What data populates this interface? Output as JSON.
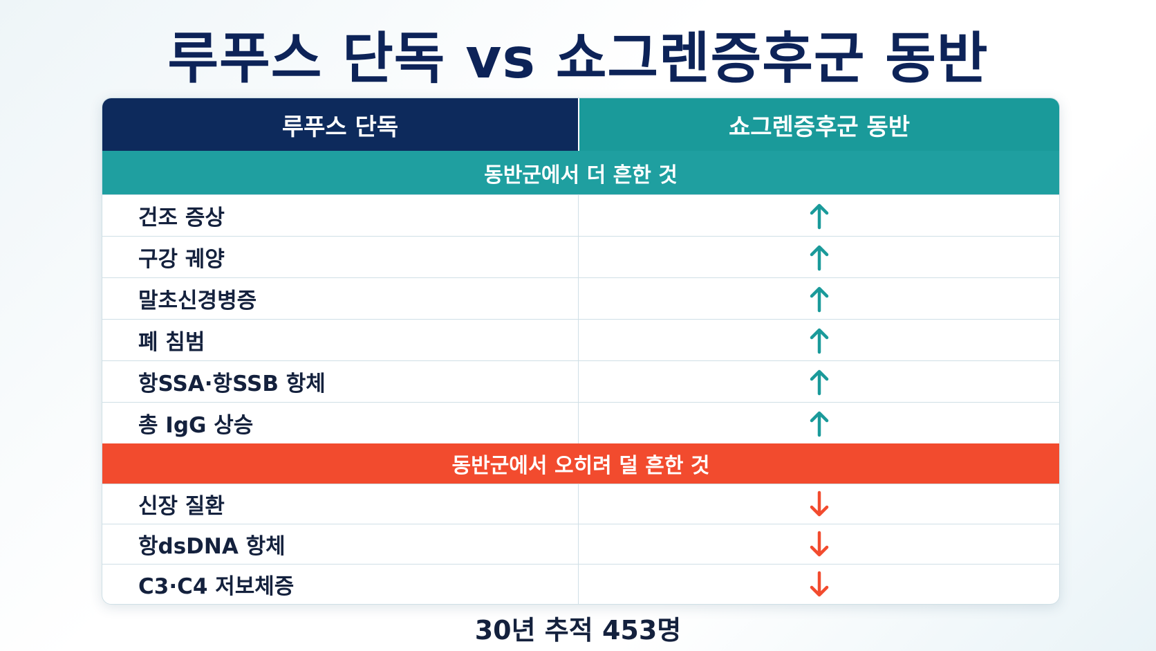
{
  "title": "루푸스 단독 vs 쇼그렌증후군 동반",
  "table": {
    "columns": [
      "루푸스 단독",
      "쇼그렌증후군 동반"
    ],
    "sections": [
      {
        "label": "동반군에서 더 흔한 것",
        "rows": [
          "건조 증상",
          "구강 궤양",
          "말초신경병증",
          "폐 침범",
          "항SSA·항SSB 항체",
          "총 IgG 상승"
        ]
      },
      {
        "label": "동반군에서 오히려 덜 흔한 것",
        "rows": [
          "신장 질환",
          "항dsDNA 항체",
          "C3·C4 저보체증"
        ]
      }
    ]
  },
  "footer": "30년 추적 453명"
}
